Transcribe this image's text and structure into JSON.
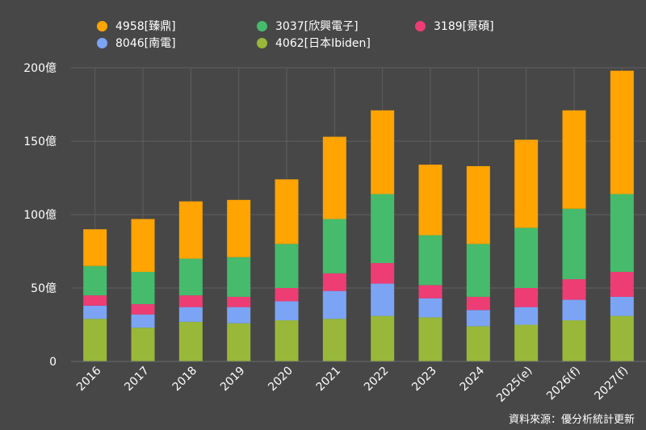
{
  "chart_data": {
    "type": "bar",
    "stacked": true,
    "categories": [
      "2016",
      "2017",
      "2018",
      "2019",
      "2020",
      "2021",
      "2022",
      "2023",
      "2024",
      "2025(e)",
      "2026(f)",
      "2027(f)"
    ],
    "series": [
      {
        "name": "4062[日本Ibiden]",
        "color": "#99B83A",
        "values": [
          29,
          23,
          27,
          26,
          28,
          29,
          31,
          30,
          24,
          25,
          28,
          31
        ]
      },
      {
        "name": "8046[南電]",
        "color": "#7CA4F5",
        "values": [
          9,
          9,
          10,
          11,
          13,
          19,
          22,
          13,
          11,
          12,
          14,
          13
        ]
      },
      {
        "name": "3189[景碩]",
        "color": "#EE3D74",
        "values": [
          7,
          7,
          8,
          7,
          9,
          12,
          14,
          9,
          9,
          13,
          14,
          17
        ]
      },
      {
        "name": "3037[欣興電子]",
        "color": "#46BB6C",
        "values": [
          20,
          22,
          25,
          27,
          30,
          37,
          47,
          34,
          36,
          41,
          48,
          53
        ]
      },
      {
        "name": "4958[臻鼎]",
        "color": "#FFA400",
        "values": [
          25,
          36,
          39,
          39,
          44,
          56,
          57,
          48,
          53,
          60,
          67,
          84
        ]
      }
    ],
    "ylim": [
      0,
      200
    ],
    "yticks": [
      0,
      50,
      100,
      150,
      200
    ],
    "ytick_labels": [
      "0",
      "50億",
      "100億",
      "150億",
      "200億"
    ],
    "grid": true,
    "legend_position": "top"
  },
  "legend": {
    "items": [
      {
        "label": "4958[臻鼎]",
        "color": "#FFA400"
      },
      {
        "label": "3037[欣興電子]",
        "color": "#46BB6C"
      },
      {
        "label": "3189[景碩]",
        "color": "#EE3D74"
      },
      {
        "label": "8046[南電]",
        "color": "#7CA4F5"
      },
      {
        "label": "4062[日本Ibiden]",
        "color": "#99B83A"
      }
    ]
  },
  "source_note": "資料來源：優分析統計更新"
}
